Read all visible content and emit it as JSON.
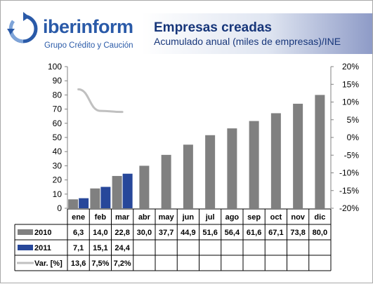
{
  "header": {
    "logo_name": "iberinform",
    "logo_subtitle": "Grupo Crédito y Caución",
    "title": "Empresas creadas",
    "subtitle": "Acumulado anual (miles de empresas)/INE"
  },
  "colors": {
    "series_2010": "#808080",
    "series_2011": "#27479a",
    "series_var": "#c0c0c0",
    "logo": "#2a5aa8",
    "title": "#17367a"
  },
  "chart_data": {
    "type": "bar",
    "title": "Empresas creadas",
    "subtitle": "Acumulado anual (miles de empresas)/INE",
    "categories": [
      "ene",
      "feb",
      "mar",
      "abr",
      "may",
      "jun",
      "jul",
      "ago",
      "sep",
      "oct",
      "nov",
      "dic"
    ],
    "left_axis": {
      "ticks": [
        "0",
        "10",
        "20",
        "30",
        "40",
        "50",
        "60",
        "70",
        "80",
        "90",
        "100"
      ],
      "ylim": [
        0,
        100
      ]
    },
    "right_axis": {
      "ticks": [
        "-20%",
        "-15%",
        "-10%",
        "-5%",
        "0%",
        "5%",
        "10%",
        "15%",
        "20%"
      ],
      "ylim": [
        -20,
        20
      ]
    },
    "grid": false,
    "legend": "table-bottom",
    "series": [
      {
        "name": "2010",
        "type": "bar",
        "axis": "left",
        "values": [
          6.3,
          14.0,
          22.8,
          30.0,
          37.7,
          44.9,
          51.6,
          56.4,
          61.6,
          67.1,
          73.8,
          80.0
        ],
        "labels": [
          "6,3",
          "14,0",
          "22,8",
          "30,0",
          "37,7",
          "44,9",
          "51,6",
          "56,4",
          "61,6",
          "67,1",
          "73,8",
          "80,0"
        ]
      },
      {
        "name": "2011",
        "type": "bar",
        "axis": "right-none",
        "values": [
          7.1,
          15.1,
          24.4,
          null,
          null,
          null,
          null,
          null,
          null,
          null,
          null,
          null
        ],
        "labels": [
          "7,1",
          "15,1",
          "24,4",
          "",
          "",
          "",
          "",
          "",
          "",
          "",
          "",
          ""
        ]
      },
      {
        "name": "Var. [%]",
        "type": "line",
        "axis": "right",
        "values": [
          13.6,
          7.5,
          7.2,
          null,
          null,
          null,
          null,
          null,
          null,
          null,
          null,
          null
        ],
        "labels": [
          "13,6",
          "7,5%",
          "7,2%",
          "",
          "",
          "",
          "",
          "",
          "",
          "",
          "",
          ""
        ]
      }
    ]
  }
}
